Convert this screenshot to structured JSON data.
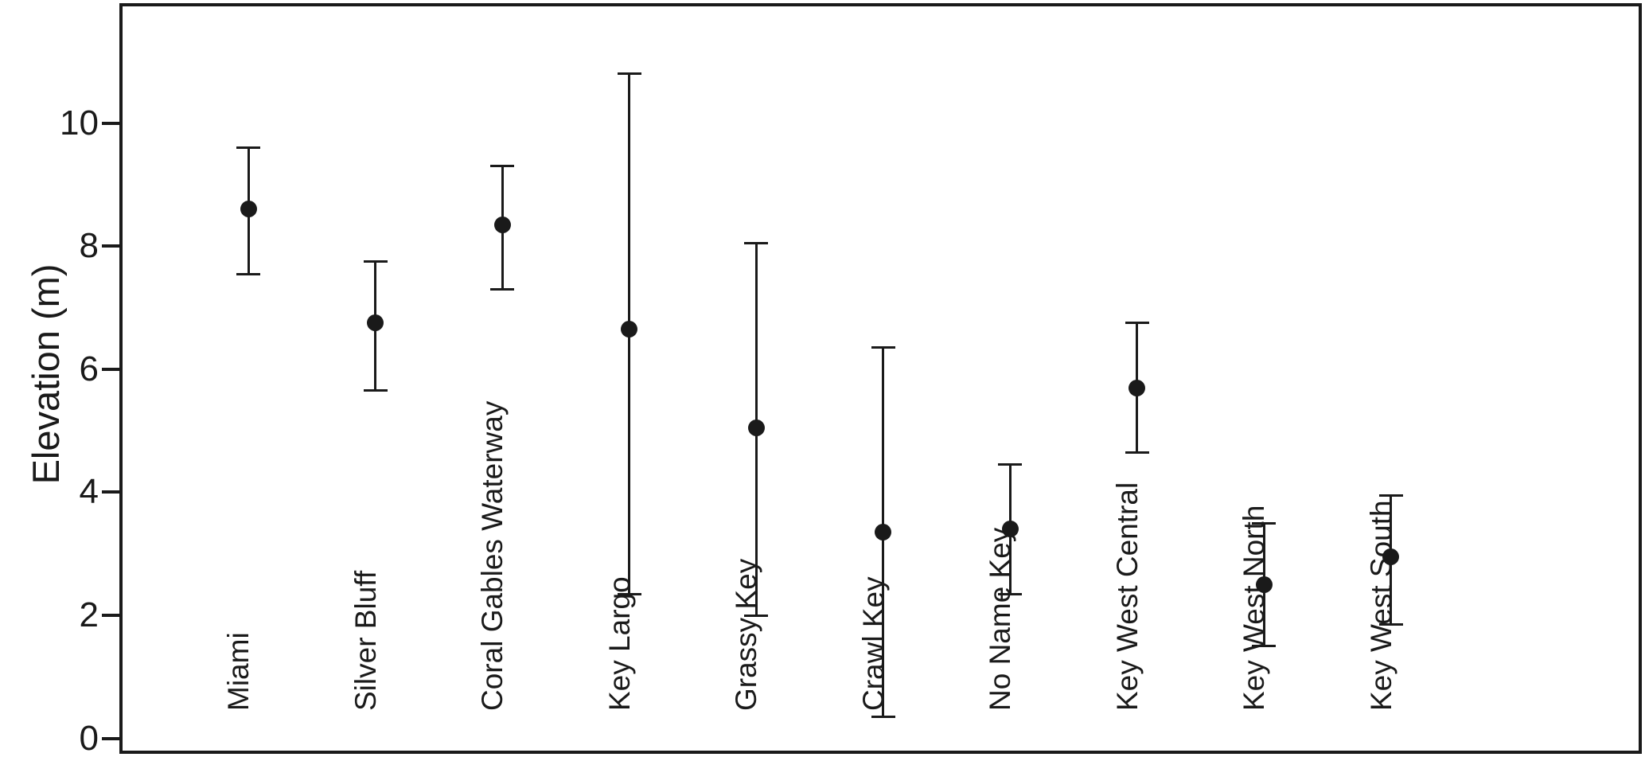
{
  "figure": {
    "description": "Dot plot with vertical error bars showing elevation by site"
  },
  "colors": {
    "ink": "#1a1a1a",
    "background": "#ffffff"
  },
  "chart_data": {
    "type": "scatter",
    "title": "",
    "xlabel": "",
    "ylabel": "Elevation (m)",
    "ylim": [
      0,
      11.9
    ],
    "yticks": [
      0,
      2,
      4,
      6,
      8,
      10
    ],
    "grid": false,
    "legend": null,
    "error_bars": true,
    "marker": "filled-circle",
    "points": [
      {
        "label": "Miami",
        "value": 8.6,
        "low": 7.55,
        "high": 9.6
      },
      {
        "label": "Silver Bluff",
        "value": 6.75,
        "low": 5.65,
        "high": 7.75
      },
      {
        "label": "Coral Gables Waterway",
        "value": 8.35,
        "low": 7.3,
        "high": 9.3
      },
      {
        "label": "Key Largo",
        "value": 6.65,
        "low": 2.35,
        "high": 10.8
      },
      {
        "label": "Grassy Key",
        "value": 5.05,
        "low": 2.0,
        "high": 8.05
      },
      {
        "label": "Crawl Key",
        "value": 3.35,
        "low": 0.35,
        "high": 6.35
      },
      {
        "label": "No Name Key",
        "value": 3.4,
        "low": 2.35,
        "high": 4.45
      },
      {
        "label": "Key West Central",
        "value": 5.7,
        "low": 4.65,
        "high": 6.75
      },
      {
        "label": "Key West North",
        "value": 2.5,
        "low": 1.5,
        "high": 3.5
      },
      {
        "label": "Key West South",
        "value": 2.95,
        "low": 1.85,
        "high": 3.95
      }
    ]
  }
}
